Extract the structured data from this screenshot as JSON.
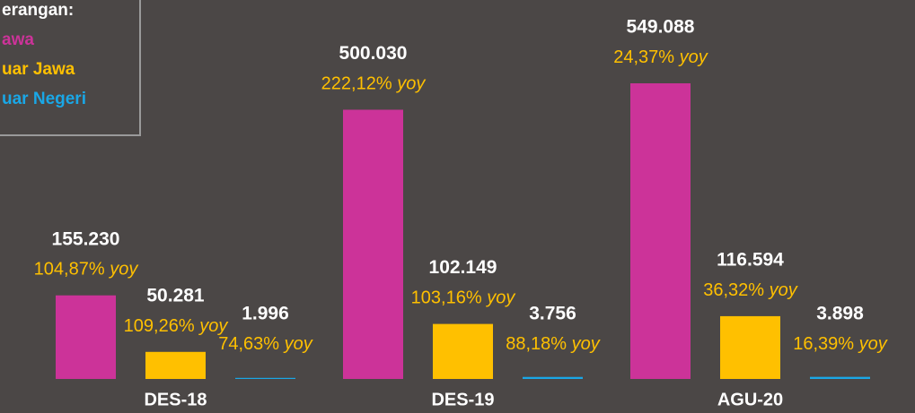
{
  "chart_data": {
    "type": "bar",
    "legend_title": "erangan:",
    "categories": [
      "DES-18",
      "DES-19",
      "AGU-20"
    ],
    "yoy_word": "yoy",
    "series": [
      {
        "name": "awa",
        "color": "#cc3399",
        "values": [
          155230,
          500030,
          549088
        ],
        "value_labels": [
          "155.230",
          "500.030",
          "549.088"
        ],
        "yoy_labels": [
          "104,87%",
          "222,12%",
          "24,37%"
        ]
      },
      {
        "name": "uar Jawa",
        "color": "#ffc000",
        "values": [
          50281,
          102149,
          116594
        ],
        "value_labels": [
          "50.281",
          "102.149",
          "116.594"
        ],
        "yoy_labels": [
          "109,26%",
          "103,16%",
          "36,32%"
        ]
      },
      {
        "name": "uar Negeri",
        "color": "#1aa7e6",
        "values": [
          1996,
          3756,
          3898
        ],
        "value_labels": [
          "1.996",
          "3.756",
          "3.898"
        ],
        "yoy_labels": [
          "74,63%",
          "88,18%",
          "16,39%"
        ]
      }
    ],
    "ylim": [
      0,
      549088
    ]
  }
}
